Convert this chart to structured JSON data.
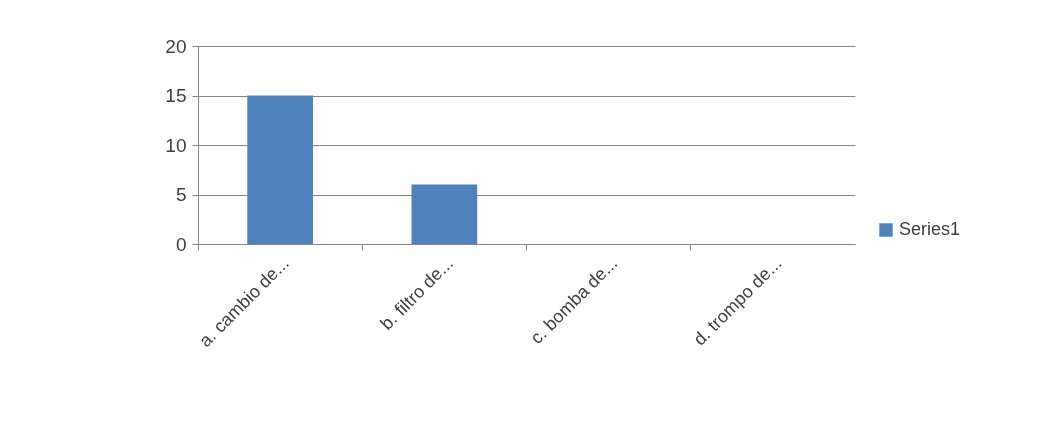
{
  "chart_data": {
    "type": "bar",
    "categories": [
      "a. cambio de...",
      "b. filtro de...",
      "c. bomba de...",
      "d. trompo de..."
    ],
    "series": [
      {
        "name": "Series1",
        "color": "#4f81bd",
        "values": [
          15,
          6,
          0,
          0
        ]
      }
    ],
    "ylim": [
      0,
      20
    ],
    "yticks": [
      0,
      5,
      10,
      15,
      20
    ],
    "grid": "y",
    "legend": "right"
  }
}
